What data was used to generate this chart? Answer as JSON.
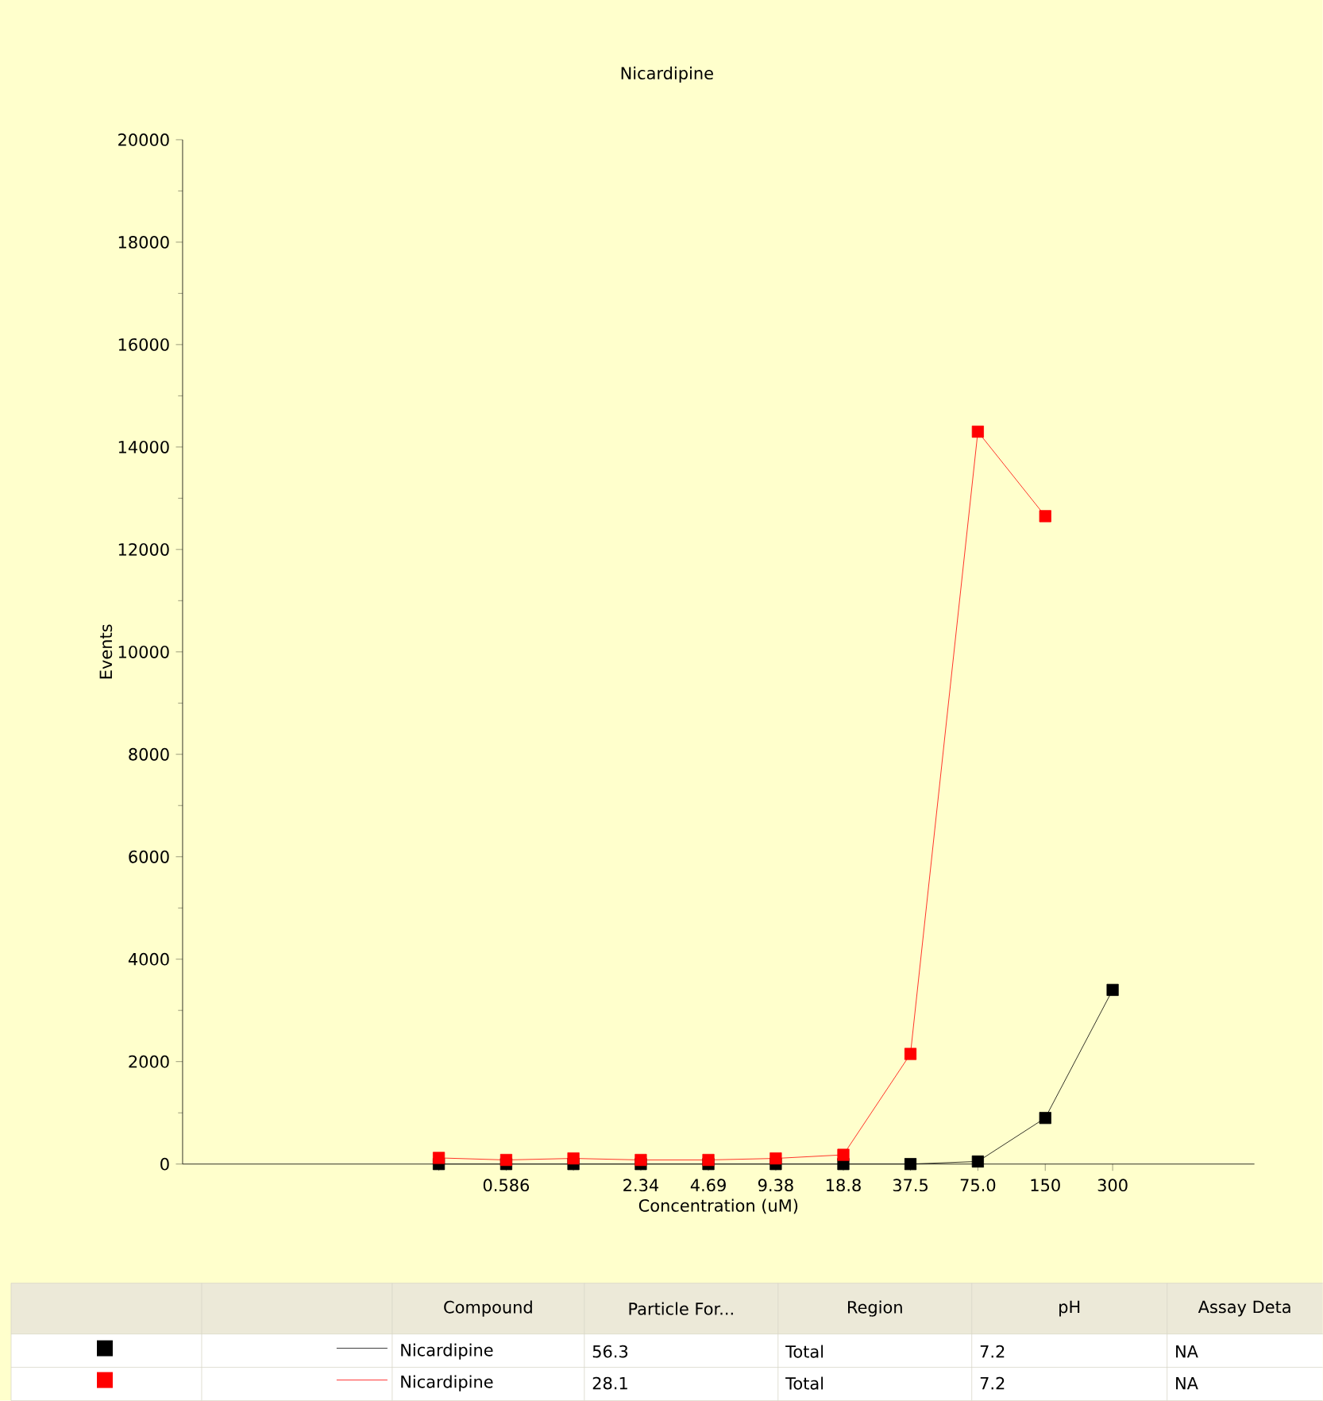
{
  "chart_data": {
    "type": "line",
    "title": "Nicardipine",
    "xlabel": "Concentration (uM)",
    "ylabel": "Events",
    "x": [
      0.293,
      0.586,
      1.17,
      2.34,
      4.69,
      9.38,
      18.8,
      37.5,
      75,
      150,
      300
    ],
    "series": [
      {
        "name": "Nicardipine",
        "color": "#000000",
        "values": [
          0,
          0,
          0,
          0,
          0,
          0,
          0,
          0,
          50,
          900,
          3400
        ]
      },
      {
        "name": "Nicardipine",
        "color": "#ff0000",
        "values": [
          120,
          80,
          110,
          80,
          80,
          110,
          180,
          2150,
          14300,
          12650,
          null
        ]
      }
    ],
    "log": "x",
    "xlim": [
      0.021,
      1290
    ],
    "xticks": [
      {
        "value": 0.293,
        "label": null
      },
      0.586,
      {
        "value": 1.17,
        "label": null
      },
      2.34,
      4.69,
      9.38,
      18.8,
      37.5,
      {
        "value": 75,
        "label": "75.0"
      },
      150,
      300
    ],
    "ylim": [
      0,
      20000
    ],
    "yticks": [
      0,
      2000,
      4000,
      6000,
      8000,
      10000,
      12000,
      14000,
      16000,
      18000,
      20000
    ],
    "marker": "square",
    "line_style": "solid",
    "legend": "bottom",
    "grid": false,
    "annotations": [
      "Compound",
      "Particle For...",
      "Region",
      "pH",
      "Assay Deta",
      "56.3",
      "Total",
      "7.2",
      "NA",
      "28.1",
      "Total",
      "7.2",
      "NA"
    ]
  }
}
